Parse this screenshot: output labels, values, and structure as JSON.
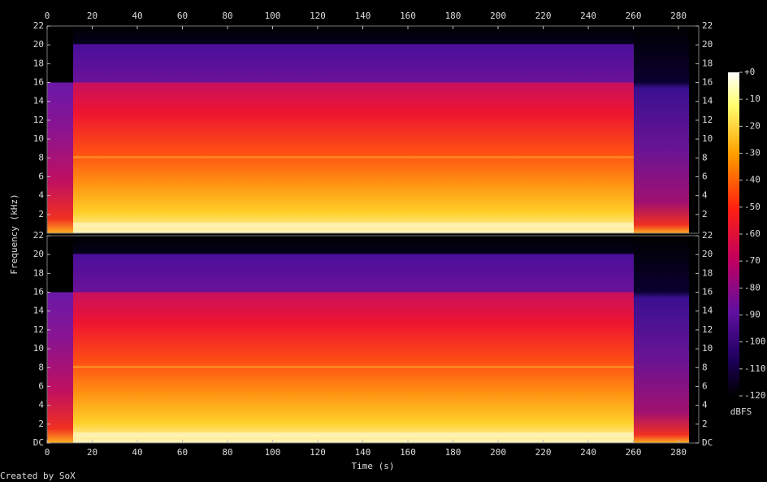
{
  "chart_data": {
    "type": "spectrogram",
    "xlabel": "Time (s)",
    "ylabel": "Frequency (kHz)",
    "footer": "Created by SoX",
    "xlim": [
      0,
      289
    ],
    "xticks": [
      0,
      20,
      40,
      60,
      80,
      100,
      120,
      140,
      160,
      180,
      200,
      220,
      240,
      260,
      280
    ],
    "panels": [
      {
        "ylim": [
          0,
          22
        ],
        "yticks": [
          2,
          4,
          6,
          8,
          10,
          12,
          14,
          16,
          18,
          20,
          22
        ]
      },
      {
        "ylim": [
          0,
          22
        ],
        "yticks": [
          {
            "value": 0,
            "label": "DC"
          },
          2,
          4,
          6,
          8,
          10,
          12,
          14,
          16,
          18,
          20,
          22
        ]
      }
    ],
    "colorbar": {
      "label": "dBFS",
      "lim": [
        -120,
        0
      ],
      "ticks": [
        {
          "value": 0,
          "label": "+0"
        },
        -10,
        -20,
        -30,
        -40,
        -50,
        -60,
        -70,
        -80,
        -90,
        -100,
        -110,
        -120
      ]
    }
  }
}
